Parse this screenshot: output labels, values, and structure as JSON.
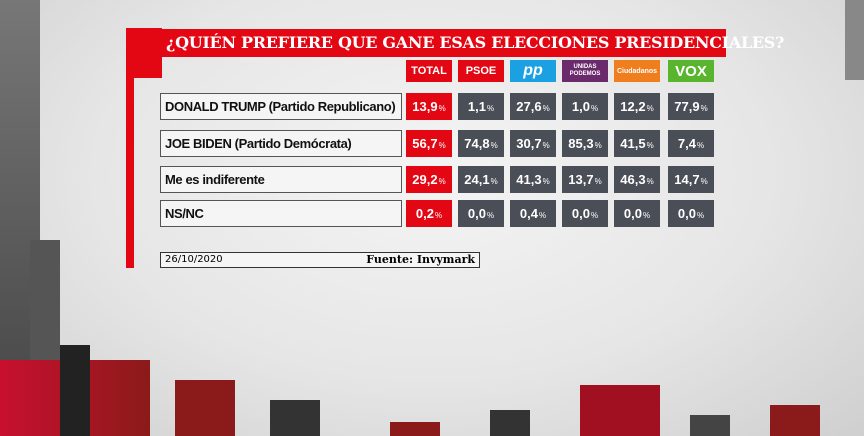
{
  "title": "¿QUIÉN PREFIERE QUE GANE ESAS ELECCIONES PRESIDENCIALES?",
  "columns": [
    {
      "label": "TOTAL",
      "color": "#e30613"
    },
    {
      "label": "PSOE",
      "color": "#e30613"
    },
    {
      "label": "pp",
      "color": "#1ba1e2"
    },
    {
      "label": "UNIDAS PODEMOS",
      "color": "#6b2a6b"
    },
    {
      "label": "Ciudadanos",
      "color": "#f07d1e"
    },
    {
      "label": "VOX",
      "color": "#5ab52e"
    }
  ],
  "percent_sign": "%",
  "rows": [
    {
      "label": "DONALD TRUMP (Partido Republicano)",
      "values": [
        "13,9",
        "1,1",
        "27,6",
        "1,0",
        "12,2",
        "77,9"
      ]
    },
    {
      "label": "JOE BIDEN (Partido Demócrata)",
      "values": [
        "56,7",
        "74,8",
        "30,7",
        "85,3",
        "41,5",
        "7,4"
      ]
    },
    {
      "label": "Me es indiferente",
      "values": [
        "29,2",
        "24,1",
        "41,3",
        "13,7",
        "46,3",
        "14,7"
      ]
    },
    {
      "label": "NS/NC",
      "values": [
        "0,2",
        "0,0",
        "0,4",
        "0,0",
        "0,0",
        "0,0"
      ]
    }
  ],
  "footer": {
    "date": "26/10/2020",
    "source": "Fuente: Invymark"
  }
}
